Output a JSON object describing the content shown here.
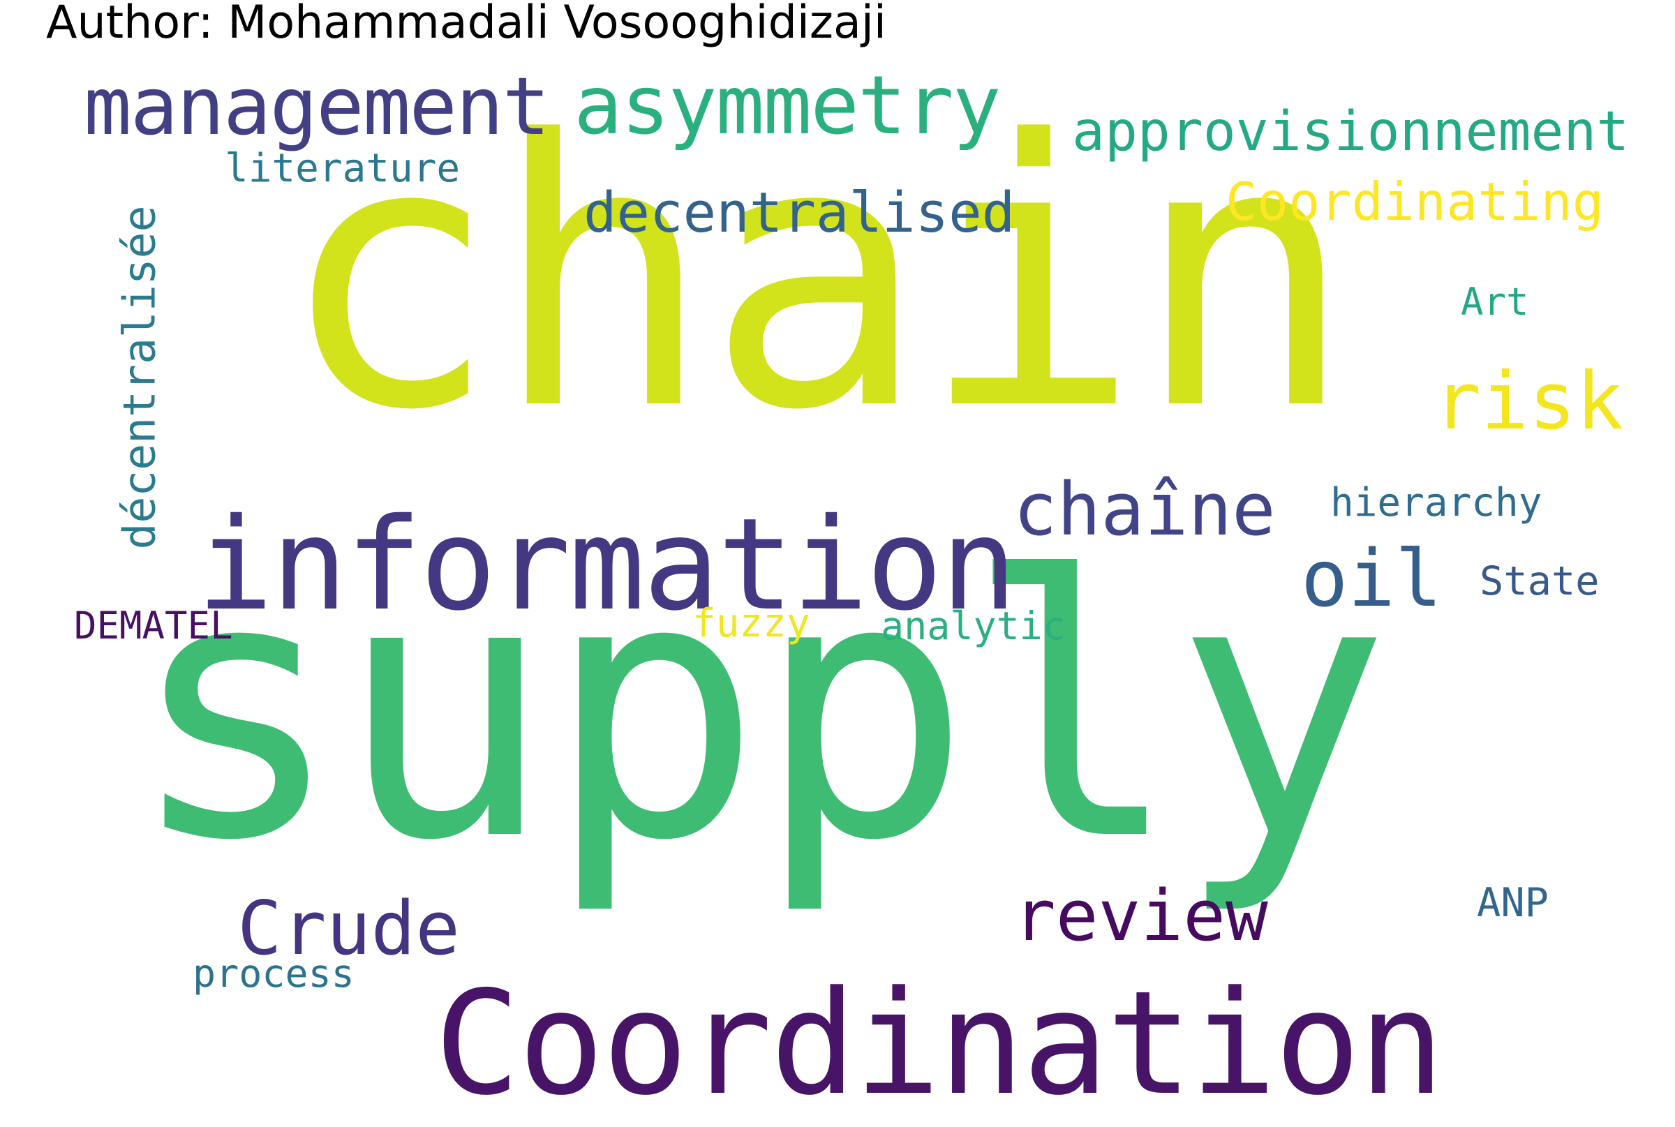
{
  "figure": {
    "author_line": "Author: Mohammadali Vosooghidizaji"
  },
  "word_cloud": {
    "words": [
      {
        "text": "chain",
        "color": "#d2e21b"
      },
      {
        "text": "supply",
        "color": "#3fbc73"
      },
      {
        "text": "information",
        "color": "#453882"
      },
      {
        "text": "Coordination",
        "color": "#481467"
      },
      {
        "text": "asymmetry",
        "color": "#2ab07f"
      },
      {
        "text": "management",
        "color": "#423f85"
      },
      {
        "text": "approvisionnement",
        "color": "#23a983"
      },
      {
        "text": "literature",
        "color": "#2a788e"
      },
      {
        "text": "décentralisée",
        "color": "#2a7b8e"
      },
      {
        "text": "decentralised",
        "color": "#33628d"
      },
      {
        "text": "Coordinating",
        "color": "#fde725"
      },
      {
        "text": "Art",
        "color": "#22a785"
      },
      {
        "text": "risk",
        "color": "#f4e61e"
      },
      {
        "text": "chaîne",
        "color": "#414487"
      },
      {
        "text": "hierarchy",
        "color": "#2f6c8e"
      },
      {
        "text": "oil",
        "color": "#355e8d"
      },
      {
        "text": "State",
        "color": "#38598c"
      },
      {
        "text": "DEMATEL",
        "color": "#471063"
      },
      {
        "text": "fuzzy",
        "color": "#f1e51d"
      },
      {
        "text": "analytic",
        "color": "#2ab07f"
      },
      {
        "text": "Crude",
        "color": "#453581"
      },
      {
        "text": "review",
        "color": "#460b5e"
      },
      {
        "text": "ANP",
        "color": "#31668e"
      },
      {
        "text": "process",
        "color": "#2c728e"
      }
    ]
  }
}
